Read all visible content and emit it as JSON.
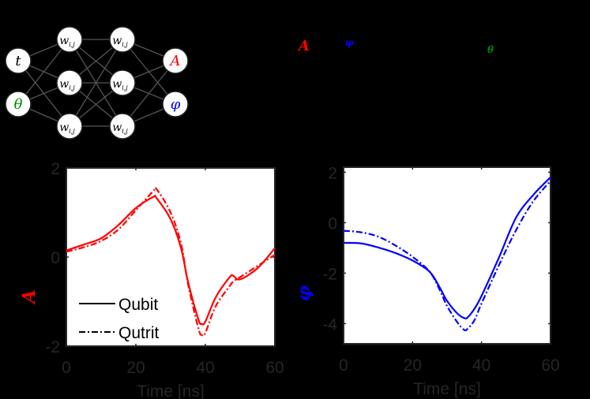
{
  "network": {
    "inputs": [
      {
        "label": "t",
        "color": "#000000"
      },
      {
        "label": "θ",
        "color": "#008800"
      }
    ],
    "hidden_label_base": "w",
    "hidden_label_sub": "i,j",
    "hidden_layers": 2,
    "hidden_nodes_per_layer": 3,
    "outputs": [
      {
        "label": "A",
        "color": "#ff0000"
      },
      {
        "label": "φ",
        "color": "#0000ff"
      }
    ]
  },
  "caption_symbols": [
    {
      "label": "A",
      "color": "#ff0000"
    },
    {
      "label": "φ",
      "color": "#0000ff"
    },
    {
      "label": "θ",
      "color": "#008800"
    }
  ],
  "legend": {
    "items": [
      {
        "label": "Qubit",
        "style": "solid"
      },
      {
        "label": "Qutrit",
        "style": "dashdot"
      }
    ]
  },
  "chart_data": [
    {
      "type": "line",
      "title": "",
      "xlabel": "Time [ns]",
      "ylabel": "A",
      "ylabel_color": "#ff0000",
      "xlim": [
        0,
        60
      ],
      "ylim": [
        -2,
        2
      ],
      "xticks": [
        "0",
        "20",
        "40",
        "60"
      ],
      "yticks": [
        "2",
        "0",
        "-2"
      ],
      "grid": false,
      "legend_position": "lower left",
      "series_color": "#ff0000",
      "x": [
        0,
        5,
        10,
        15,
        20,
        25,
        26,
        30,
        33,
        35,
        38,
        39,
        40,
        43,
        47,
        48,
        50,
        55,
        60
      ],
      "series": [
        {
          "name": "Qubit",
          "style": "solid",
          "values": [
            0.15,
            0.28,
            0.42,
            0.72,
            1.1,
            1.35,
            1.32,
            0.85,
            0.2,
            -0.55,
            -1.4,
            -1.5,
            -1.45,
            -0.9,
            -0.45,
            -0.42,
            -0.5,
            -0.25,
            0.2
          ]
        },
        {
          "name": "Qutrit",
          "style": "dashdot",
          "values": [
            0.12,
            0.22,
            0.36,
            0.62,
            1.05,
            1.48,
            1.52,
            1.0,
            0.3,
            -0.6,
            -1.6,
            -1.75,
            -1.7,
            -1.1,
            -0.65,
            -0.55,
            -0.45,
            -0.2,
            0.05
          ]
        }
      ]
    },
    {
      "type": "line",
      "title": "",
      "xlabel": "Time [ns]",
      "ylabel": "φ",
      "ylabel_color": "#0000ff",
      "xlim": [
        0,
        60
      ],
      "ylim": [
        -4.8,
        2.2
      ],
      "xticks": [
        "0",
        "20",
        "40",
        "60"
      ],
      "yticks": [
        "2",
        "0",
        "-2",
        "-4"
      ],
      "grid": false,
      "series_color": "#0000ff",
      "x": [
        0,
        5,
        10,
        15,
        20,
        25,
        28,
        30,
        33,
        35,
        36,
        38,
        40,
        45,
        50,
        55,
        60
      ],
      "series": [
        {
          "name": "Qubit",
          "style": "solid",
          "values": [
            -0.8,
            -0.82,
            -0.98,
            -1.2,
            -1.5,
            -1.95,
            -2.6,
            -3.1,
            -3.6,
            -3.78,
            -3.75,
            -3.4,
            -2.9,
            -1.4,
            0.2,
            1.1,
            1.8
          ]
        },
        {
          "name": "Qutrit",
          "style": "dashdot",
          "values": [
            -0.32,
            -0.38,
            -0.55,
            -0.9,
            -1.35,
            -1.95,
            -2.7,
            -3.3,
            -3.95,
            -4.25,
            -4.2,
            -3.85,
            -3.2,
            -1.7,
            -0.3,
            0.85,
            1.65
          ]
        }
      ]
    }
  ]
}
